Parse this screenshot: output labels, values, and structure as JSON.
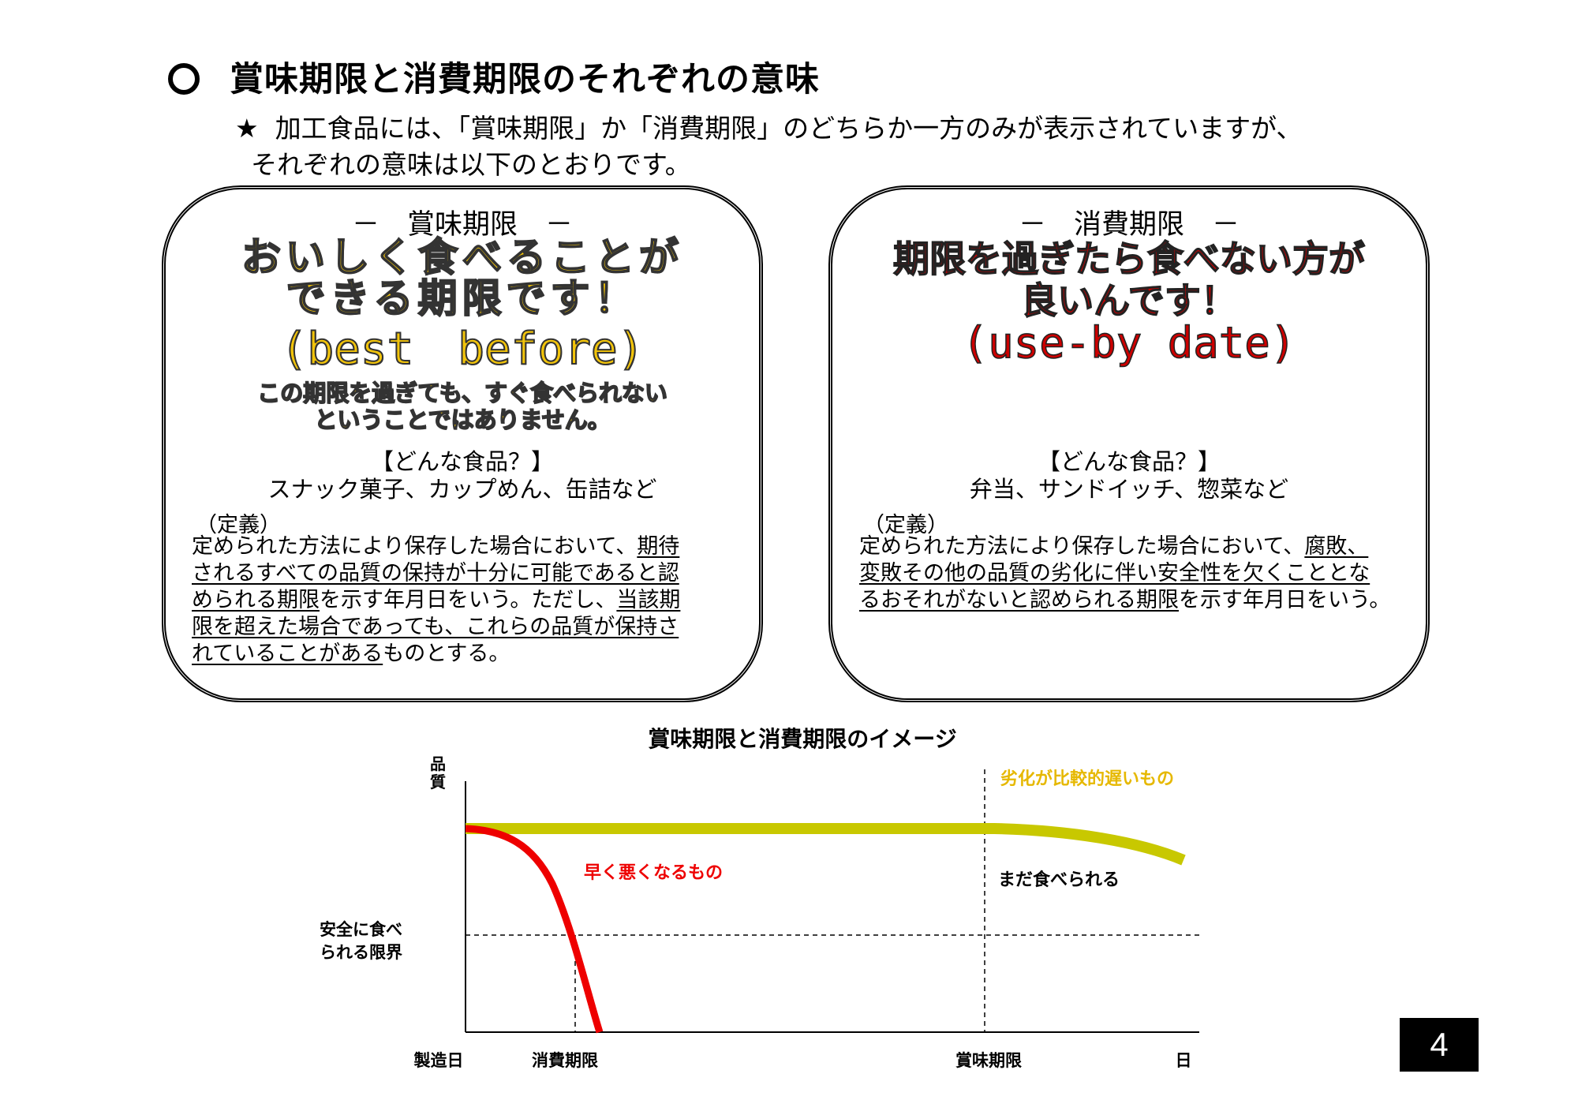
{
  "heading": "賞味期限と消費期限のそれぞれの意味",
  "intro": {
    "star": "★",
    "line1": "加工食品には、「賞味期限」か「消費期限」のどちらか一方のみが表示されていますが、",
    "line2": "それぞれの意味は以下のとおりです。"
  },
  "best_before": {
    "label": "－　賞味期限　－",
    "headline_line1": "おいしく食べることが",
    "headline_line2": "できる期限です！",
    "english": "(best　before)",
    "note_line1": "この期限を過ぎても、すぐ食べられない",
    "note_line2": "ということではありません。",
    "food_heading": "【どんな食品？】",
    "food_list": "スナック菓子、カップめん、缶詰など",
    "definition_label": "（定義）",
    "def": {
      "l1a": "定められた方法により保存した場合において、",
      "l1b": "期待",
      "l2": "されるすべての品質の保持が十分に可能であると認",
      "l3a": "められる期限",
      "l3b": "を示す年月日をいう。ただし、",
      "l3c": "当該期",
      "l4": "限を超えた場合であっても、これらの品質が保持さ",
      "l5a": "れていることがある",
      "l5b": "ものとする。"
    }
  },
  "use_by": {
    "label": "－　消費期限　－",
    "headline_line1": "期限を過ぎたら食べない方が",
    "headline_line2": "良いんです！",
    "english": "(use-by date)",
    "food_heading": "【どんな食品？】",
    "food_list": "弁当、サンドイッチ、惣菜など",
    "definition_label": "（定義）",
    "def": {
      "l1a": "定められた方法により保存した場合において、",
      "l1b": "腐敗、",
      "l2": "変敗その他の品質の劣化に伴い安全性を欠くこととな",
      "l3a": "るおそれがないと認められる期限",
      "l3b": "を示す年月日をいう。"
    }
  },
  "chart_title": "賞味期限と消費期限のイメージ",
  "chart_data": {
    "type": "line",
    "title": "賞味期限と消費期限のイメージ",
    "ylabel": "品質",
    "x_ticks": [
      "製造日",
      "消費期限",
      "賞味期限",
      "日"
    ],
    "safe_limit_label": "安全に食べられる限界",
    "safe_limit_label_line1": "安全に食べ",
    "safe_limit_label_line2": "られる限界",
    "series": [
      {
        "name": "劣化が比較的遅いもの",
        "color": "#c8c800",
        "annotation": "まだ食べられる"
      },
      {
        "name": "早く悪くなるもの",
        "color": "#ee0000"
      }
    ]
  },
  "page_number": "4",
  "colors": {
    "gold": "#f2c40a",
    "red_text": "#cc0000",
    "slow_line": "#c8c800",
    "fast_line": "#ee0000",
    "slow_label": "#e6b800"
  }
}
